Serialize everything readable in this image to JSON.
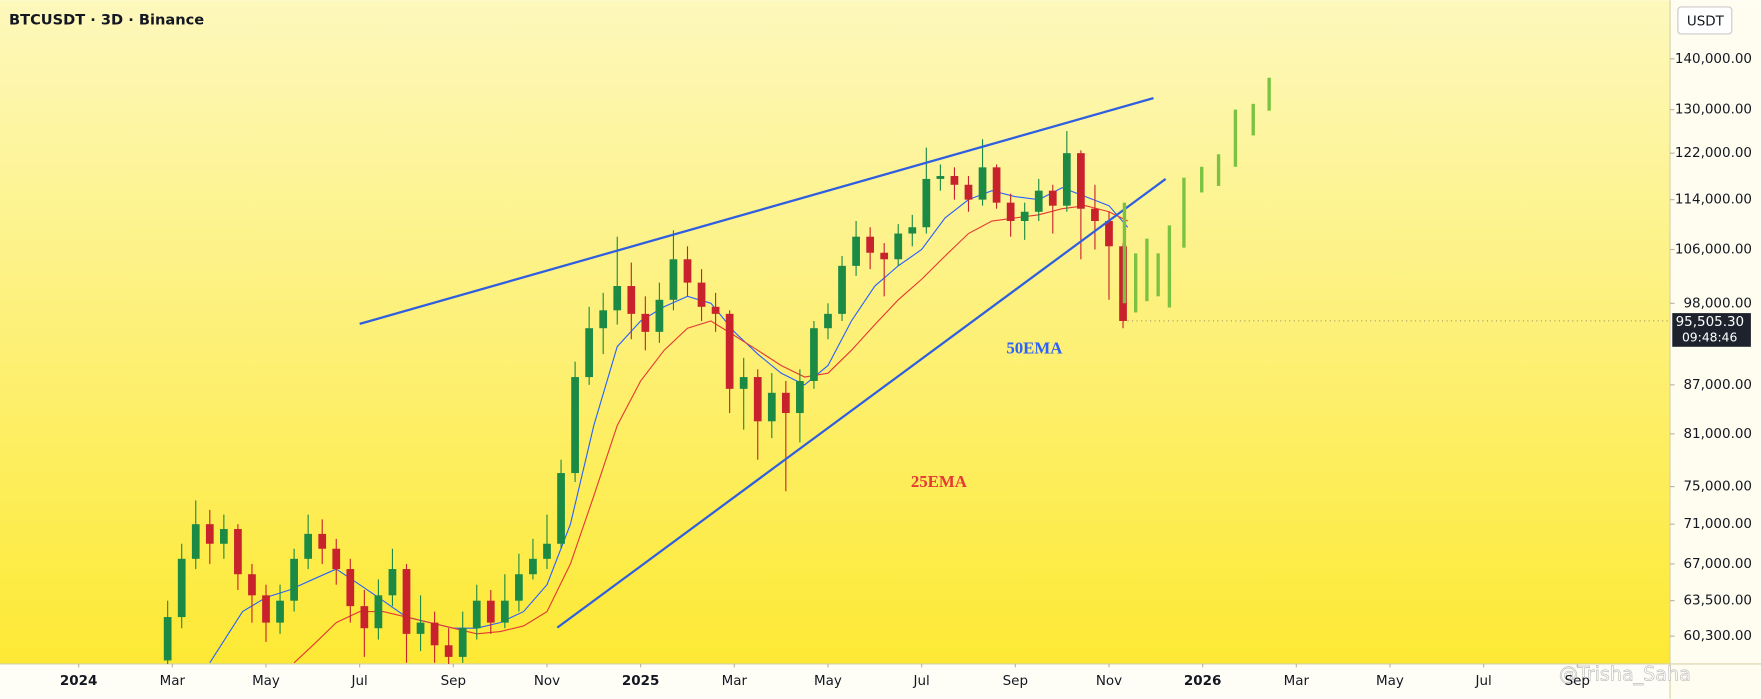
{
  "chart_data": {
    "type": "candlestick",
    "title": "BTCUSDT · 3D · Binance",
    "currency": "USDT",
    "log_scale": true,
    "grid": false,
    "xlim": [
      -1.68,
      33.98
    ],
    "ylim": [
      57900,
      152500
    ],
    "xticks": [
      {
        "value": 0,
        "label": "2024"
      },
      {
        "value": 2,
        "label": "Mar"
      },
      {
        "value": 4,
        "label": "May"
      },
      {
        "value": 6,
        "label": "Jul"
      },
      {
        "value": 8,
        "label": "Sep"
      },
      {
        "value": 10,
        "label": "Nov"
      },
      {
        "value": 12,
        "label": "2025"
      },
      {
        "value": 14,
        "label": "Mar"
      },
      {
        "value": 16,
        "label": "May"
      },
      {
        "value": 18,
        "label": "Jul"
      },
      {
        "value": 20,
        "label": "Sep"
      },
      {
        "value": 22,
        "label": "Nov"
      },
      {
        "value": 24,
        "label": "2026"
      },
      {
        "value": 26,
        "label": "Mar"
      },
      {
        "value": 28,
        "label": "May"
      },
      {
        "value": 30,
        "label": "Jul"
      },
      {
        "value": 32,
        "label": "Sep"
      }
    ],
    "yticks": [
      {
        "value": 140000,
        "label": "140,000.00"
      },
      {
        "value": 130000,
        "label": "130,000.00"
      },
      {
        "value": 122000,
        "label": "122,000.00"
      },
      {
        "value": 114000,
        "label": "114,000.00"
      },
      {
        "value": 106000,
        "label": "106,000.00"
      },
      {
        "value": 98000,
        "label": "98,000.00"
      },
      {
        "value": 87000,
        "label": "87,000.00"
      },
      {
        "value": 81000,
        "label": "81,000.00"
      },
      {
        "value": 75000,
        "label": "75,000.00"
      },
      {
        "value": 71000,
        "label": "71,000.00"
      },
      {
        "value": 67000,
        "label": "67,000.00"
      },
      {
        "value": 63500,
        "label": "63,500.00"
      },
      {
        "value": 60300,
        "label": "60,300.00"
      }
    ],
    "up_color": "#1a8a45",
    "down_color": "#c8232c",
    "x": [
      1.9,
      2.2,
      2.5,
      2.8,
      3.1,
      3.4,
      3.7,
      4.0,
      4.3,
      4.6,
      4.9,
      5.2,
      5.5,
      5.8,
      6.1,
      6.4,
      6.7,
      7.0,
      7.3,
      7.6,
      7.9,
      8.2,
      8.5,
      8.8,
      9.1,
      9.4,
      9.7,
      10.0,
      10.3,
      10.6,
      10.9,
      11.2,
      11.5,
      11.8,
      12.1,
      12.4,
      12.7,
      13.0,
      13.3,
      13.6,
      13.9,
      14.2,
      14.5,
      14.8,
      15.1,
      15.4,
      15.7,
      16.0,
      16.3,
      16.6,
      16.9,
      17.2,
      17.5,
      17.8,
      18.1,
      18.4,
      18.7,
      19.0,
      19.3,
      19.6,
      19.9,
      20.2,
      20.5,
      20.8,
      21.1,
      21.4,
      21.7,
      22.0,
      22.3
    ],
    "open": [
      58200,
      62000,
      67500,
      71000,
      69000,
      70500,
      66000,
      64000,
      61500,
      63500,
      67500,
      70000,
      68500,
      66500,
      63000,
      61000,
      64000,
      66500,
      60500,
      61500,
      59500,
      58500,
      61000,
      63500,
      61500,
      63500,
      66000,
      67500,
      69000,
      76500,
      88000,
      94500,
      97000,
      100500,
      96500,
      94000,
      98500,
      104500,
      101000,
      97500,
      96500,
      86500,
      88000,
      82500,
      86000,
      83500,
      87500,
      94500,
      96500,
      103500,
      108000,
      105500,
      104500,
      108500,
      109500,
      117500,
      118000,
      116500,
      114000,
      119500,
      113500,
      110500,
      112000,
      115500,
      113000,
      122000,
      112500,
      110500,
      106500
    ],
    "high": [
      63500,
      69000,
      73500,
      72500,
      72000,
      71000,
      67000,
      65000,
      65000,
      68500,
      72000,
      71500,
      69500,
      67500,
      64500,
      65500,
      68500,
      67000,
      64000,
      62500,
      61000,
      62500,
      65000,
      64500,
      66000,
      68000,
      69500,
      72000,
      78000,
      90000,
      97500,
      99500,
      108000,
      104000,
      99000,
      101000,
      109000,
      106500,
      103000,
      99500,
      97000,
      90500,
      89000,
      88500,
      87500,
      89000,
      95500,
      98000,
      105000,
      110500,
      109500,
      107000,
      110000,
      111500,
      123000,
      120000,
      119500,
      118000,
      124500,
      120000,
      115000,
      113500,
      117500,
      116500,
      126000,
      122500,
      116500,
      112000,
      107000
    ],
    "low": [
      57900,
      61000,
      66500,
      67000,
      67500,
      64500,
      61500,
      59800,
      60500,
      62500,
      66500,
      67000,
      65000,
      61500,
      58500,
      60000,
      63000,
      58000,
      59000,
      58000,
      57900,
      58000,
      60000,
      60500,
      61000,
      62500,
      65500,
      66500,
      68500,
      75500,
      87000,
      91000,
      95000,
      93000,
      91500,
      92500,
      97000,
      99000,
      95500,
      94000,
      83500,
      81500,
      78000,
      80500,
      74500,
      80000,
      86500,
      93000,
      95500,
      102000,
      103000,
      99000,
      103500,
      106500,
      108500,
      115500,
      114000,
      112000,
      113000,
      112500,
      108000,
      107500,
      110500,
      108500,
      112000,
      104500,
      106000,
      98500,
      94500
    ],
    "close": [
      62000,
      67500,
      71000,
      69000,
      70500,
      66000,
      64000,
      61500,
      63500,
      67500,
      70000,
      68500,
      66500,
      63000,
      61000,
      64000,
      66500,
      60500,
      61500,
      59500,
      58500,
      61000,
      63500,
      61500,
      63500,
      66000,
      67500,
      69000,
      76500,
      88000,
      94500,
      97000,
      100500,
      96500,
      94000,
      98500,
      104500,
      101000,
      97500,
      96500,
      86500,
      88000,
      82500,
      86000,
      83500,
      87500,
      94500,
      96500,
      103500,
      108000,
      105500,
      104500,
      108500,
      109500,
      117500,
      118000,
      116500,
      114000,
      119500,
      113500,
      110500,
      112000,
      115500,
      113000,
      122000,
      112500,
      110500,
      106500,
      95505.3
    ],
    "series": [
      {
        "name": "50EMA",
        "color": "#2962ff",
        "x": [
          2.8,
          3.5,
          4.0,
          4.5,
          5.0,
          5.5,
          6.0,
          6.5,
          7.0,
          7.5,
          8.0,
          8.5,
          9.0,
          9.5,
          10.0,
          10.5,
          11.0,
          11.5,
          12.0,
          12.5,
          13.0,
          13.5,
          14.0,
          14.5,
          15.0,
          15.5,
          16.0,
          16.5,
          17.0,
          17.5,
          18.0,
          18.5,
          19.0,
          19.5,
          20.0,
          20.5,
          21.0,
          21.5,
          22.0,
          22.4
        ],
        "values": [
          58000,
          62500,
          63800,
          64500,
          65500,
          66500,
          65000,
          63500,
          62000,
          61500,
          61000,
          61000,
          61500,
          62500,
          65000,
          71000,
          82000,
          92000,
          95500,
          97500,
          99000,
          98000,
          94000,
          91000,
          88500,
          87000,
          89500,
          95500,
          100500,
          103500,
          106000,
          111000,
          114000,
          115500,
          114500,
          114000,
          116000,
          114500,
          113000,
          109500
        ]
      },
      {
        "name": "25EMA",
        "color": "#e53935",
        "x": [
          4.6,
          5.0,
          5.5,
          6.0,
          6.5,
          7.0,
          7.5,
          8.0,
          8.5,
          9.0,
          9.5,
          10.0,
          10.5,
          11.0,
          11.5,
          12.0,
          12.5,
          13.0,
          13.5,
          14.0,
          14.5,
          15.0,
          15.5,
          16.0,
          16.5,
          17.0,
          17.5,
          18.0,
          18.5,
          19.0,
          19.5,
          20.0,
          20.5,
          21.0,
          21.5,
          22.0,
          22.4
        ],
        "values": [
          58000,
          59500,
          61500,
          62500,
          62500,
          62000,
          61500,
          61000,
          60500,
          60700,
          61200,
          62500,
          67000,
          74000,
          82000,
          87500,
          91500,
          94500,
          95500,
          93500,
          91500,
          89500,
          88000,
          88500,
          91500,
          95000,
          98500,
          101500,
          105000,
          108500,
          110500,
          111000,
          111500,
          112500,
          113000,
          112000,
          110500
        ]
      }
    ],
    "trendlines": {
      "color": "#2f5fe0",
      "lines": [
        {
          "x": [
            6.0,
            22.95
          ],
          "values": [
            95100,
            132200
          ]
        },
        {
          "x": [
            10.22,
            23.21
          ],
          "values": [
            61050,
            117500
          ]
        }
      ]
    },
    "projection": {
      "color": "#7cc242",
      "x": [
        22.33,
        22.57,
        22.81,
        23.05,
        23.29,
        23.6,
        23.98,
        24.34,
        24.7,
        25.08,
        25.42
      ],
      "low": [
        98000,
        96700,
        98300,
        99000,
        97400,
        106300,
        115200,
        116300,
        119600,
        125200,
        129800
      ],
      "high": [
        113500,
        105400,
        107700,
        105400,
        109800,
        117700,
        119600,
        121800,
        130000,
        131100,
        136200
      ]
    },
    "last_price": {
      "value": 95505.3,
      "label": "95,505.30"
    },
    "countdown": "09:48:46",
    "watermark": "@Trisha_Saha"
  }
}
